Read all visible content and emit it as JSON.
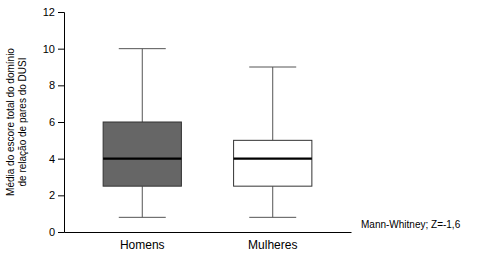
{
  "chart_data": {
    "type": "box",
    "ylabel": "Média do escore total do domínio\nde relação de pares do DUSI",
    "categories": [
      "Homens",
      "Mulheres"
    ],
    "whisker_low": [
      0.8,
      0.8
    ],
    "q1": [
      2.5,
      2.5
    ],
    "median": [
      4.0,
      4.0
    ],
    "q3": [
      6.0,
      5.0
    ],
    "whisker_high": [
      10.0,
      9.0
    ],
    "colors": [
      "#666666",
      "#ffffff"
    ],
    "ylim": [
      0,
      12
    ],
    "yticks": [
      0,
      2,
      4,
      6,
      8,
      10,
      12
    ],
    "annotation": "Mann-Whitney; Z=-1,6",
    "grid": false
  }
}
